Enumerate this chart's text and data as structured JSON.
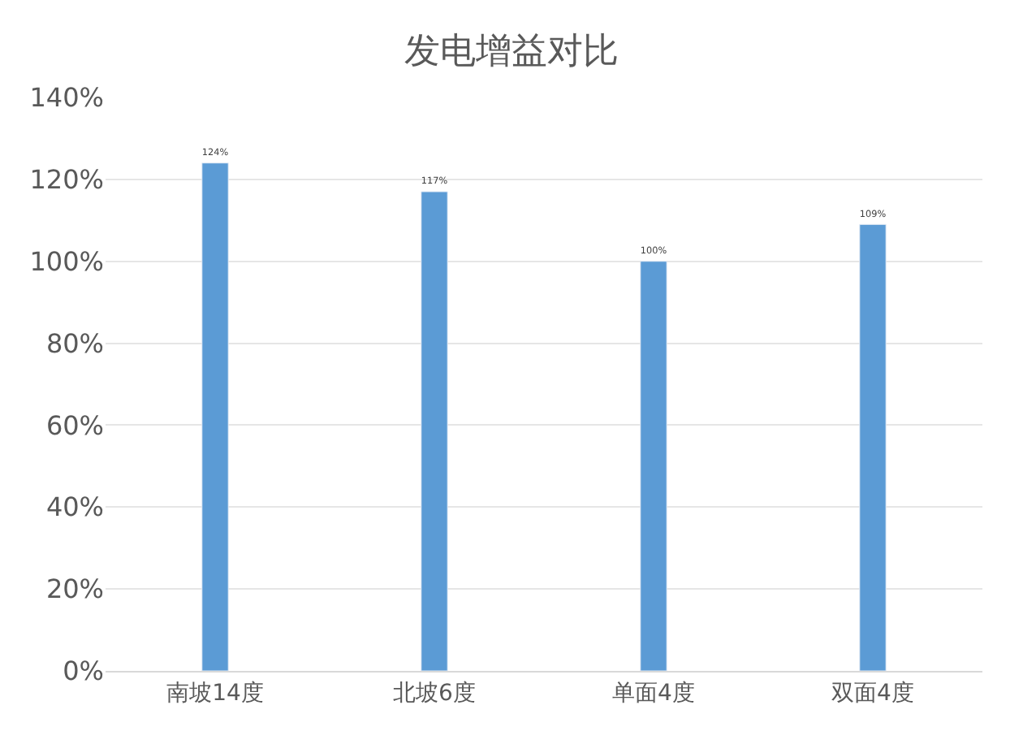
{
  "chart_data": {
    "type": "bar",
    "title": "发电增益对比",
    "categories": [
      "南坡14度",
      "北坡6度",
      "单面4度",
      "双面4度"
    ],
    "values": [
      124,
      117,
      100,
      109
    ],
    "value_labels": [
      "124%",
      "117%",
      "100%",
      "109%"
    ],
    "color": "#5b9bd5",
    "ylim": [
      0,
      140
    ],
    "yticks": [
      {
        "value": 0,
        "label": "0%"
      },
      {
        "value": 20,
        "label": "20%"
      },
      {
        "value": 40,
        "label": "40%"
      },
      {
        "value": 60,
        "label": "60%"
      },
      {
        "value": 80,
        "label": "80%"
      },
      {
        "value": 100,
        "label": "100%"
      },
      {
        "value": 120,
        "label": "120%"
      },
      {
        "value": 140,
        "label": "140%"
      }
    ],
    "grid": "y"
  }
}
